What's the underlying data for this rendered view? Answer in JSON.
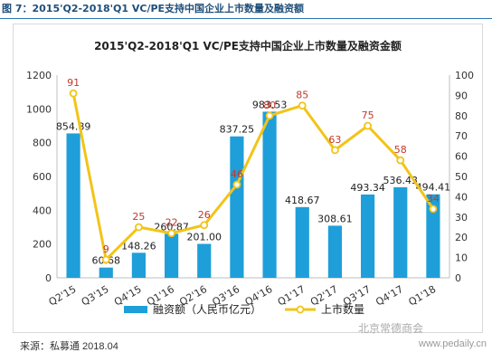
{
  "figure": {
    "caption": "图 7：2015'Q2-2018'Q1 VC/PE支持中国企业上市数量及融资额",
    "source": "来源：私募通  2018.04",
    "watermark": "www.pedaily.cn",
    "logo_text": "北京常德商会"
  },
  "chart_data": {
    "type": "bar",
    "title": "2015'Q2-2018'Q1 VC/PE支持中国企业上市数量及融资金额",
    "categories": [
      "Q2'15",
      "Q3'15",
      "Q4'15",
      "Q1'16",
      "Q2'16",
      "Q3'16",
      "Q4'16",
      "Q1'17",
      "Q2'17",
      "Q3'17",
      "Q4'17",
      "Q1'18"
    ],
    "series": [
      {
        "name": "融资额（人民币亿元）",
        "type": "bar",
        "axis": "left",
        "color": "#1e9fd9",
        "values": [
          854.89,
          60.68,
          148.26,
          260.87,
          201.0,
          837.25,
          983.53,
          418.67,
          308.61,
          493.34,
          536.43,
          494.41
        ],
        "labels": [
          "854.89",
          "60.68",
          "148.26",
          "260.87",
          "201.00",
          "837.25",
          "983.53",
          "418.67",
          "308.61",
          "493.34",
          "536.43",
          "494.41"
        ]
      },
      {
        "name": "上市数量",
        "type": "line",
        "axis": "right",
        "color": "#f2c418",
        "label_color": "#c0392b",
        "values": [
          91,
          9,
          25,
          22,
          26,
          46,
          80,
          85,
          63,
          75,
          58,
          34
        ],
        "labels": [
          "91",
          "9",
          "25",
          "22",
          "26",
          "46",
          "80",
          "85",
          "63",
          "75",
          "58",
          "34"
        ]
      }
    ],
    "ylim_left": [
      0,
      1200
    ],
    "yticks_left": [
      "0",
      "200",
      "400",
      "600",
      "800",
      "1000",
      "1200"
    ],
    "ylim_right": [
      0,
      100
    ],
    "yticks_right": [
      "0",
      "10",
      "20",
      "30",
      "40",
      "50",
      "60",
      "70",
      "80",
      "90",
      "100"
    ],
    "grid": false,
    "legend": "bottom"
  }
}
